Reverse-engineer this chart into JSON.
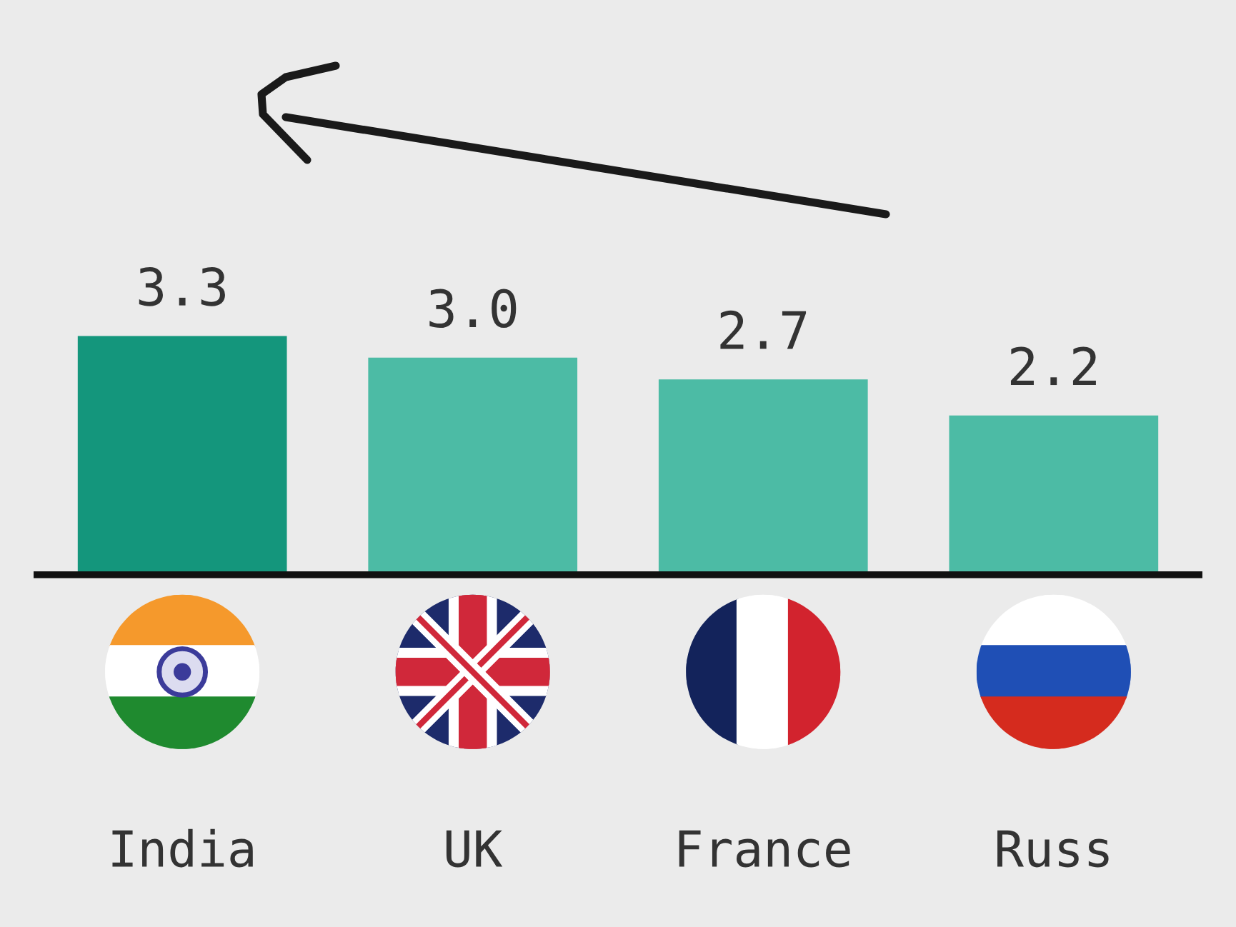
{
  "chart_data": {
    "type": "bar",
    "categories": [
      "India",
      "UK",
      "France",
      "Russ"
    ],
    "values": [
      3.3,
      3.0,
      2.7,
      2.2
    ],
    "value_labels": [
      "3.3",
      "3.0",
      "2.7",
      "2.2"
    ],
    "colors": [
      "#14967c",
      "#4cbba5",
      "#4cbba5",
      "#4cbba5"
    ],
    "tick_labels": "x"
  }
}
